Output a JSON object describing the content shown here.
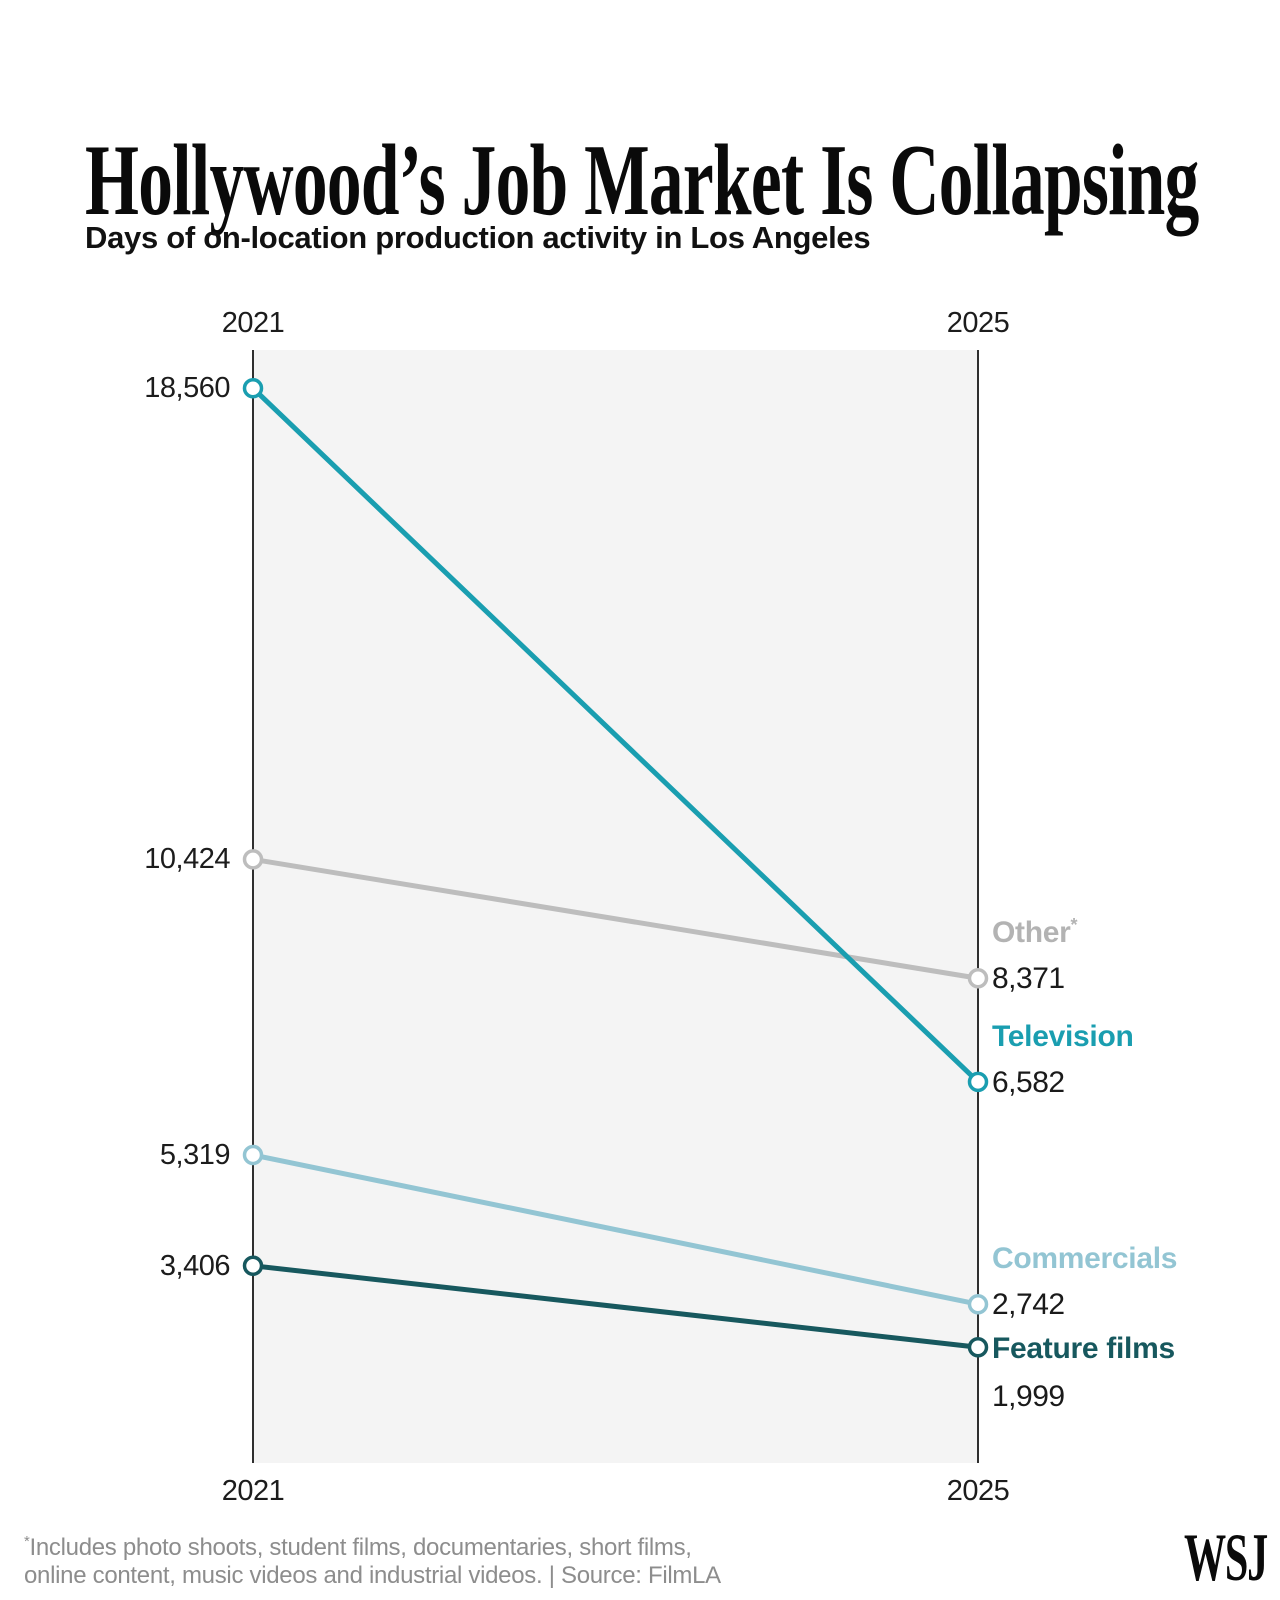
{
  "page": {
    "title": "Hollywood’s Job Market Is Collapsing",
    "subtitle": "Days of on-location production activity in Los Angeles",
    "logo": "WSJ"
  },
  "footnote": {
    "sup": "*",
    "line1": "Includes photo shoots, student films, documentaries, short films,",
    "line2": "online content, music videos and industrial videos. | Source: FilmLA"
  },
  "chart_data": {
    "type": "line",
    "subtype": "slope-chart",
    "title": "Hollywood’s Job Market Is Collapsing",
    "subtitle": "Days of on-location production activity in Los Angeles",
    "x_labels": [
      "2021",
      "2025"
    ],
    "x_axis_positions": "labels shown above and below both vertical axes",
    "ylim": [
      0,
      19220
    ],
    "grid": false,
    "legend_position": "right of end points",
    "plot_bg_color": "#f4f4f4",
    "axis_color": "#2f2f2f",
    "value_text_color": "#1a1a1a",
    "series": [
      {
        "name": "Other",
        "name_suffix": "*",
        "values": [
          10424,
          8371
        ],
        "value_labels": [
          "10,424",
          "8,371"
        ],
        "color": "#bdbdbd",
        "name_color": "#b3b3b3",
        "end_label_layout": "value-at-point"
      },
      {
        "name": "Commercials",
        "name_suffix": "",
        "values": [
          5319,
          2742
        ],
        "value_labels": [
          "5,319",
          "2,742"
        ],
        "color": "#93c5d3",
        "name_color": "#93c5d3",
        "end_label_layout": "value-at-point"
      },
      {
        "name": "Feature films",
        "name_suffix": "",
        "values": [
          3406,
          1999
        ],
        "value_labels": [
          "3,406",
          "1,999"
        ],
        "color": "#17585e",
        "name_color": "#17585e",
        "end_label_layout": "name-at-point"
      },
      {
        "name": "Television",
        "name_suffix": "",
        "values": [
          18560,
          6582
        ],
        "value_labels": [
          "18,560",
          "6,582"
        ],
        "color": "#1a9eb0",
        "name_color": "#1a9eb0",
        "end_label_layout": "value-at-point"
      }
    ]
  }
}
